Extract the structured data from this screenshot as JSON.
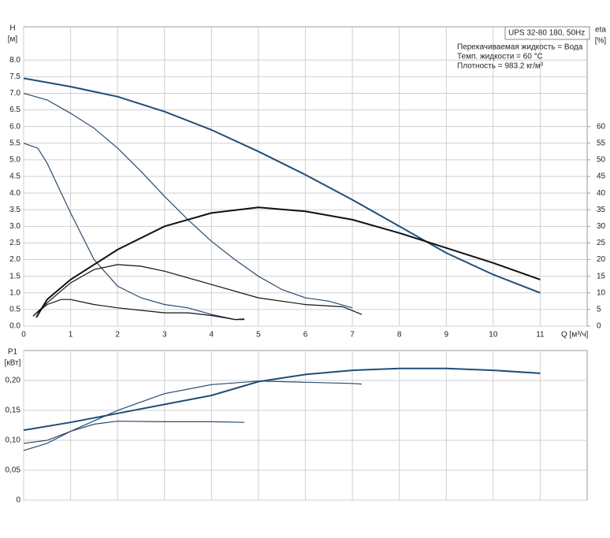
{
  "chart_data": [
    {
      "type": "line",
      "info_title": "UPS 32-80 180, 50Hz",
      "info_lines": [
        "Перекачиваемая жидкость = Вода",
        "Темп. жидкости = 60 °C",
        "Плотность = 983.2 кг/м³"
      ],
      "ylabel": "H",
      "yunit": "[м]",
      "y2label": "eta",
      "y2unit": "[%]",
      "xlabel": "Q [м³/ч]",
      "xlim": [
        0,
        12
      ],
      "xticks": [
        0,
        1,
        2,
        3,
        4,
        5,
        6,
        7,
        8,
        9,
        10,
        11
      ],
      "ylim": [
        0,
        9
      ],
      "yticks": [
        {
          "value": 0,
          "label": "0.0"
        },
        0.5,
        {
          "value": 1,
          "label": "1.0"
        },
        1.5,
        {
          "value": 2,
          "label": "2.0"
        },
        2.5,
        {
          "value": 3,
          "label": "3.0"
        },
        3.5,
        {
          "value": 4,
          "label": "4.0"
        },
        4.5,
        {
          "value": 5,
          "label": "5.0"
        },
        5.5,
        {
          "value": 6,
          "label": "6.0"
        },
        6.5,
        {
          "value": 7,
          "label": "7.0"
        },
        7.5,
        {
          "value": 8,
          "label": "8.0"
        }
      ],
      "y2lim": [
        0,
        90
      ],
      "y2ticks": [
        0,
        5,
        10,
        15,
        20,
        25,
        30,
        35,
        40,
        45,
        50,
        55,
        60
      ],
      "grid": true,
      "series": [
        {
          "color": "#1f4e79",
          "width": 2,
          "x": [
            0,
            1,
            2,
            3,
            4,
            5,
            6,
            7,
            8,
            9,
            10,
            11
          ],
          "values": [
            7.45,
            7.2,
            6.9,
            6.45,
            5.9,
            5.25,
            4.55,
            3.8,
            3.0,
            2.2,
            1.55,
            1.0
          ]
        },
        {
          "color": "#2b4a6e",
          "width": 1.2,
          "x": [
            0,
            0.5,
            1,
            1.5,
            2,
            2.5,
            3,
            3.5,
            4,
            4.5,
            5,
            5.5,
            6,
            6.5,
            7
          ],
          "values": [
            7.0,
            6.8,
            6.4,
            5.95,
            5.35,
            4.65,
            3.9,
            3.2,
            2.55,
            2.0,
            1.5,
            1.1,
            0.85,
            0.75,
            0.55
          ]
        },
        {
          "color": "#2b4a6e",
          "width": 1.2,
          "x": [
            0,
            0.3,
            0.5,
            0.8,
            1,
            1.5,
            2,
            2.5,
            3,
            3.5,
            4,
            4.5,
            4.7
          ],
          "values": [
            5.5,
            5.35,
            4.9,
            4.0,
            3.4,
            2.0,
            1.2,
            0.85,
            0.65,
            0.55,
            0.35,
            0.2,
            0.22
          ]
        },
        {
          "color": "#111111",
          "width": 2,
          "axis": "y2",
          "x": [
            0.27,
            0.5,
            1,
            2,
            3,
            4,
            5,
            6,
            7,
            8,
            9,
            10,
            11
          ],
          "values": [
            2.6,
            8,
            14,
            23,
            30,
            34,
            35.7,
            34.5,
            32,
            28,
            23.5,
            19,
            14
          ]
        },
        {
          "color": "#111111",
          "width": 1.2,
          "axis": "y2",
          "x": [
            0.2,
            0.5,
            1,
            1.5,
            2,
            2.5,
            3,
            4,
            5,
            6,
            6.8,
            7.2
          ],
          "values": [
            3,
            7,
            13,
            17,
            18.5,
            18,
            16.5,
            12.5,
            8.5,
            6.5,
            5.8,
            3.5
          ]
        },
        {
          "color": "#111111",
          "width": 1.2,
          "axis": "y2",
          "x": [
            0.2,
            0.5,
            0.8,
            1,
            1.5,
            2,
            3,
            3.5,
            4,
            4.5,
            4.7
          ],
          "values": [
            3,
            6.5,
            8,
            8,
            6.5,
            5.5,
            4,
            4,
            3.2,
            2,
            2
          ]
        }
      ]
    },
    {
      "type": "line",
      "ylabel": "P1",
      "yunit": "[кВт]",
      "xlim": [
        0,
        12
      ],
      "ylim": [
        0,
        0.25
      ],
      "yticks": [
        0,
        {
          "value": 0.05,
          "label": "0,05"
        },
        {
          "value": 0.1,
          "label": "0,10"
        },
        {
          "value": 0.15,
          "label": "0,15"
        },
        {
          "value": 0.2,
          "label": "0,20"
        }
      ],
      "grid": true,
      "series": [
        {
          "color": "#1f4e79",
          "width": 2,
          "x": [
            0,
            1,
            2,
            3,
            4,
            5,
            6,
            7,
            8,
            9,
            10,
            11
          ],
          "values": [
            0.117,
            0.13,
            0.145,
            0.16,
            0.175,
            0.198,
            0.21,
            0.217,
            0.22,
            0.22,
            0.217,
            0.212
          ]
        },
        {
          "color": "#2b4a6e",
          "width": 1.2,
          "x": [
            0,
            0.5,
            1,
            2,
            3,
            4,
            5,
            6,
            7,
            7.2
          ],
          "values": [
            0.095,
            0.1,
            0.115,
            0.15,
            0.178,
            0.193,
            0.199,
            0.197,
            0.195,
            0.194
          ]
        },
        {
          "color": "#2b4a6e",
          "width": 1.2,
          "x": [
            0,
            0.5,
            1,
            1.5,
            2,
            3,
            4,
            4.7
          ],
          "values": [
            0.083,
            0.095,
            0.115,
            0.127,
            0.132,
            0.131,
            0.131,
            0.13
          ]
        }
      ]
    }
  ]
}
